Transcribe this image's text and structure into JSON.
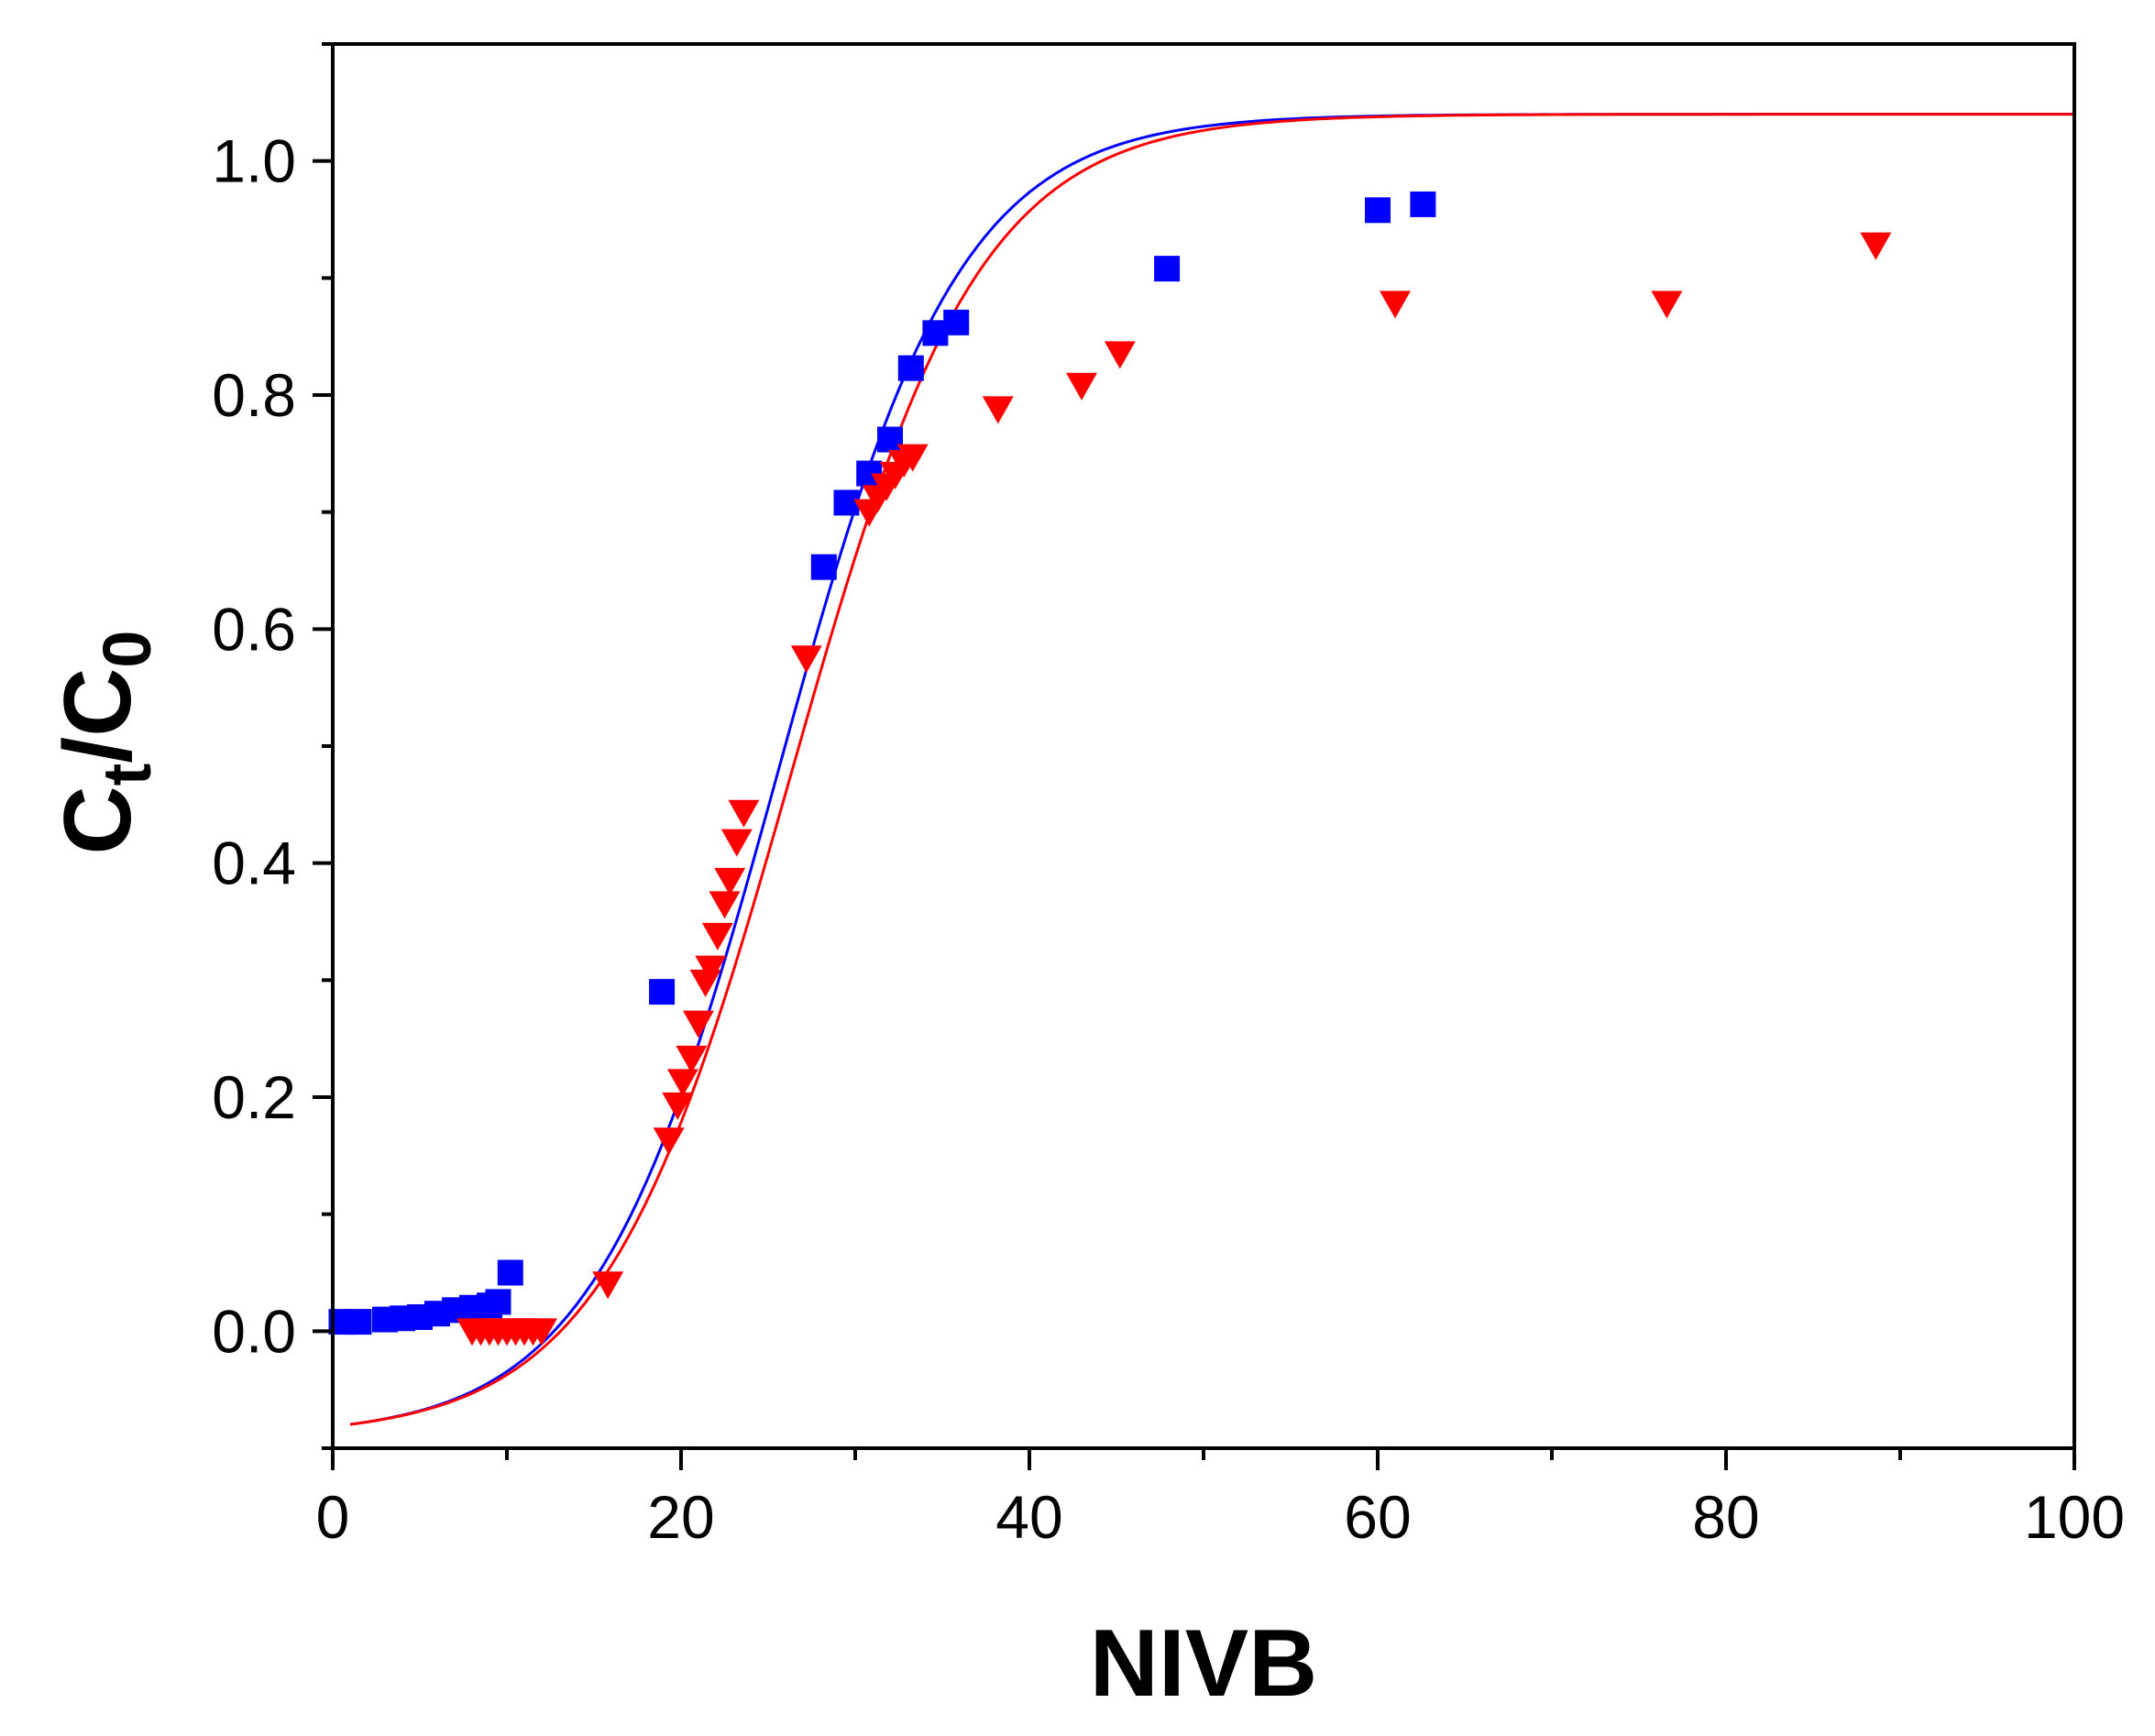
{
  "chart_data": {
    "type": "scatter",
    "title": "",
    "xlabel": "NIVB",
    "ylabel": {
      "main": "C",
      "sub1": "t",
      "sep": "/C",
      "sub2": "0"
    },
    "xlim": [
      0,
      100
    ],
    "ylim": [
      -0.1,
      1.1
    ],
    "x_ticks": [
      0,
      20,
      40,
      60,
      80,
      100
    ],
    "x_tick_labels": [
      "0",
      "20",
      "40",
      "60",
      "80",
      "100"
    ],
    "y_ticks": [
      0.0,
      0.2,
      0.4,
      0.6,
      0.8,
      1.0
    ],
    "y_tick_labels": [
      "0.0",
      "0.2",
      "0.4",
      "0.6",
      "0.8",
      "1.0"
    ],
    "grid": false,
    "series": [
      {
        "name": "series-blue-squares",
        "color": "#0000ff",
        "marker": "square",
        "points": [
          [
            0.5,
            0.008
          ],
          [
            1.5,
            0.008
          ],
          [
            3,
            0.01
          ],
          [
            4,
            0.011
          ],
          [
            5,
            0.012
          ],
          [
            6,
            0.015
          ],
          [
            7,
            0.018
          ],
          [
            8,
            0.02
          ],
          [
            9,
            0.022
          ],
          [
            9.5,
            0.025
          ],
          [
            10.2,
            0.05
          ],
          [
            18.9,
            0.29
          ],
          [
            28.2,
            0.653
          ],
          [
            29.5,
            0.708
          ],
          [
            30.8,
            0.733
          ],
          [
            32,
            0.762
          ],
          [
            33.2,
            0.823
          ],
          [
            34.6,
            0.853
          ],
          [
            35.8,
            0.862
          ],
          [
            47.9,
            0.908
          ],
          [
            60,
            0.958
          ],
          [
            62.6,
            0.963
          ]
        ],
        "fit": {
          "label": "model-fit-blue",
          "a": 0.1911,
          "b": 4.875,
          "ymax": 1.04,
          "offset": -0.09
        }
      },
      {
        "name": "series-red-triangles",
        "color": "#ff0000",
        "marker": "triangle-down",
        "points": [
          [
            8,
            0.0
          ],
          [
            8.5,
            0.0
          ],
          [
            9,
            0.0
          ],
          [
            9.5,
            0.0
          ],
          [
            10,
            0.0
          ],
          [
            10.5,
            0.0
          ],
          [
            11,
            0.0
          ],
          [
            11.5,
            0.0
          ],
          [
            12,
            0.0
          ],
          [
            15.8,
            0.04
          ],
          [
            19.3,
            0.163
          ],
          [
            19.8,
            0.193
          ],
          [
            20.1,
            0.213
          ],
          [
            20.6,
            0.233
          ],
          [
            21,
            0.263
          ],
          [
            21.4,
            0.298
          ],
          [
            21.7,
            0.31
          ],
          [
            22.1,
            0.338
          ],
          [
            22.5,
            0.365
          ],
          [
            22.8,
            0.385
          ],
          [
            23.2,
            0.418
          ],
          [
            23.6,
            0.443
          ],
          [
            27.2,
            0.575
          ],
          [
            30.8,
            0.7
          ],
          [
            31.3,
            0.712
          ],
          [
            31.8,
            0.722
          ],
          [
            32.3,
            0.732
          ],
          [
            32.8,
            0.742
          ],
          [
            33.3,
            0.747
          ],
          [
            38.2,
            0.788
          ],
          [
            43,
            0.808
          ],
          [
            45.2,
            0.835
          ],
          [
            61,
            0.878
          ],
          [
            76.6,
            0.878
          ],
          [
            88.6,
            0.928
          ]
        ],
        "fit": {
          "label": "model-fit-red",
          "a": 0.1852,
          "b": 4.87,
          "ymax": 1.04,
          "offset": -0.09
        }
      }
    ]
  }
}
